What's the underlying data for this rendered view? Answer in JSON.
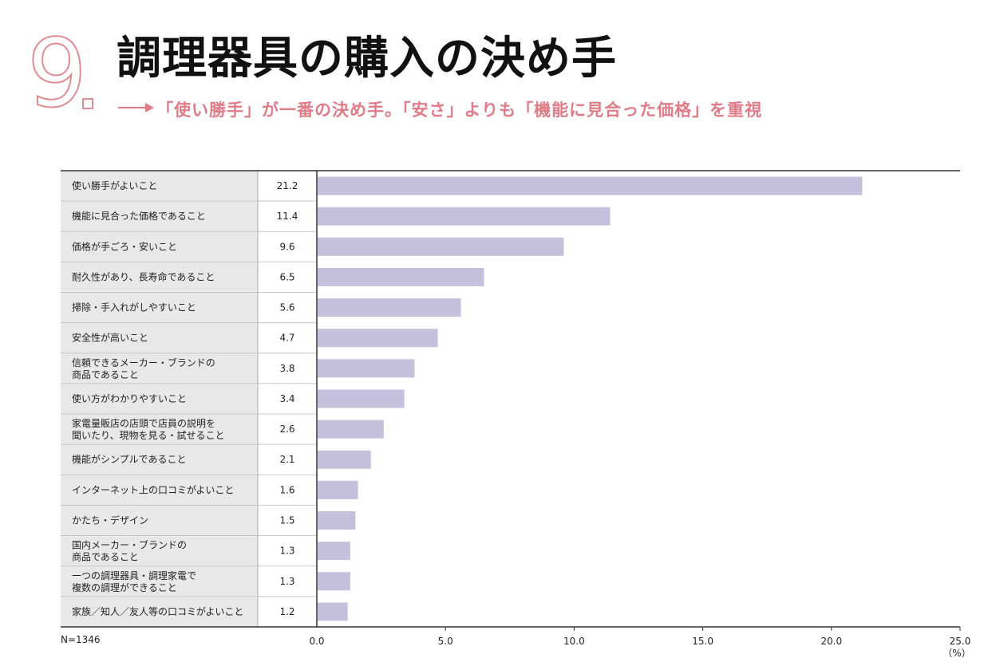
{
  "header": {
    "number": "9",
    "title": "調理器具の購入の決め手",
    "subtitle": "「使い勝手」が一番の決め手。「安さ」よりも「機能に見合った価格」を重視"
  },
  "colors": {
    "accent": "#e28b92",
    "subtitle": "#e07b87",
    "bar": "#c5c1dc",
    "label_bg": "#e8e8e8"
  },
  "chart_data": {
    "type": "bar",
    "orientation": "horizontal",
    "title": "",
    "sample_note": "N=1346",
    "unit_label": "（%）",
    "xlim": [
      0,
      25
    ],
    "ticks": [
      "0.0",
      "5.0",
      "10.0",
      "15.0",
      "20.0",
      "25.0"
    ],
    "tick_values": [
      0,
      5,
      10,
      15,
      20,
      25
    ],
    "categories": [
      [
        "使い勝手がよいこと"
      ],
      [
        "機能に見合った価格であること"
      ],
      [
        "価格が手ごろ・安いこと"
      ],
      [
        "耐久性があり、長寿命であること"
      ],
      [
        "掃除・手入れがしやすいこと"
      ],
      [
        "安全性が高いこと"
      ],
      [
        "信頼できるメーカー・ブランドの",
        "商品であること"
      ],
      [
        "使い方がわかりやすいこと"
      ],
      [
        "家電量販店の店頭で店員の説明を",
        "聞いたり、現物を見る・試せること"
      ],
      [
        "機能がシンプルであること"
      ],
      [
        "インターネット上の口コミがよいこと"
      ],
      [
        "かたち・デザイン"
      ],
      [
        "国内メーカー・ブランドの",
        "商品であること"
      ],
      [
        "一つの調理器具・調理家電で",
        "複数の調理ができること"
      ],
      [
        "家族／知人／友人等の口コミがよいこと"
      ]
    ],
    "values": [
      21.2,
      11.4,
      9.6,
      6.5,
      5.6,
      4.7,
      3.8,
      3.4,
      2.6,
      2.1,
      1.6,
      1.5,
      1.3,
      1.3,
      1.2
    ],
    "value_labels": [
      "21.2",
      "11.4",
      "9.6",
      "6.5",
      "5.6",
      "4.7",
      "3.8",
      "3.4",
      "2.6",
      "2.1",
      "1.6",
      "1.5",
      "1.3",
      "1.3",
      "1.2"
    ]
  }
}
